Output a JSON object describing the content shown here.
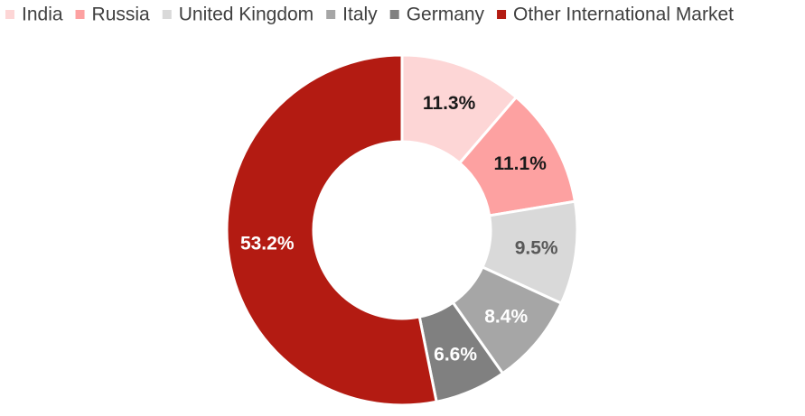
{
  "chart_data": {
    "type": "pie",
    "subtype": "donut",
    "title": "",
    "legend_position": "top",
    "categories": [
      "India",
      "Russia",
      "United Kingdom",
      "Italy",
      "Germany",
      "Other International Market"
    ],
    "values": [
      11.3,
      11.1,
      9.5,
      8.4,
      6.6,
      53.2
    ],
    "labels": [
      "11.3%",
      "11.1%",
      "9.5%",
      "8.4%",
      "6.6%",
      "53.2%"
    ],
    "colors": [
      "#fdd6d6",
      "#fda1a1",
      "#d9d9d9",
      "#a6a6a6",
      "#808080",
      "#b31b12"
    ],
    "label_colors": [
      "#1a1a1a",
      "#1a1a1a",
      "#595959",
      "#ffffff",
      "#ffffff",
      "#ffffff"
    ]
  }
}
